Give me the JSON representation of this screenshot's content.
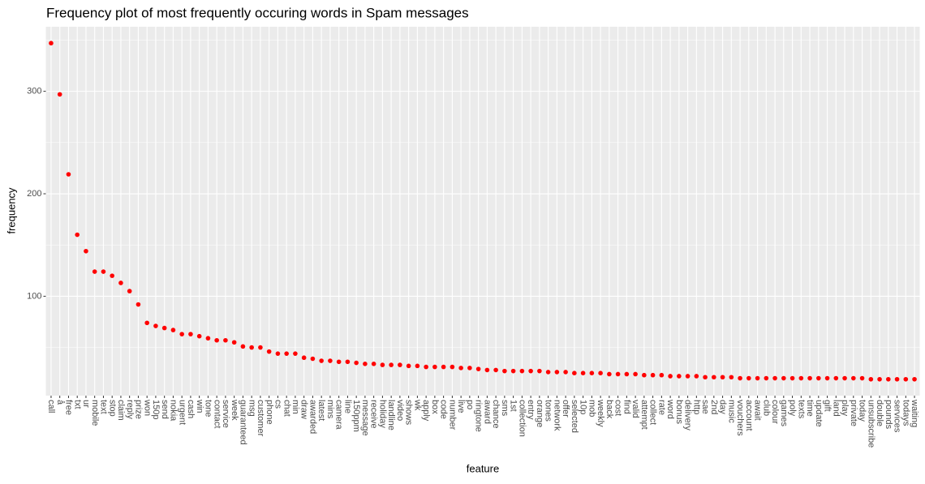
{
  "chart_data": {
    "type": "scatter",
    "title": "Frequency plot of most frequently occuring words in Spam messages",
    "x_label": "feature",
    "y_label": "frequency",
    "categories": [
      "call",
      "å",
      "free",
      "txt",
      "ur",
      "mobile",
      "text",
      "stop",
      "claim",
      "reply",
      "prize",
      "won",
      "150p",
      "send",
      "nokia",
      "urgent",
      "cash",
      "win",
      "tone",
      "contact",
      "service",
      "week",
      "guaranteed",
      "msg",
      "customer",
      "phone",
      "cs",
      "chat",
      "min",
      "draw",
      "awarded",
      "latest",
      "mins",
      "camera",
      "line",
      "150ppm",
      "message",
      "receive",
      "holiday",
      "landline",
      "video",
      "shows",
      "wk",
      "apply",
      "box",
      "code",
      "number",
      "live",
      "po",
      "ringtone",
      "award",
      "chance",
      "sms",
      "1st",
      "collection",
      "entry",
      "orange",
      "tones",
      "network",
      "offer",
      "selected",
      "10p",
      "mob",
      "weekly",
      "back",
      "cost",
      "find",
      "valid",
      "attempt",
      "collect",
      "rate",
      "word",
      "bonus",
      "delivery",
      "http",
      "sae",
      "2nd",
      "day",
      "music",
      "vouchers",
      "account",
      "await",
      "club",
      "colour",
      "games",
      "poly",
      "texts",
      "time",
      "update",
      "gift",
      "land",
      "play",
      "private",
      "today",
      "unsubscribe",
      "double",
      "pounds",
      "services",
      "todays",
      "waiting"
    ],
    "values": [
      347,
      297,
      219,
      160,
      144,
      124,
      124,
      120,
      113,
      105,
      92,
      74,
      71,
      69,
      67,
      63,
      63,
      61,
      59,
      57,
      57,
      55,
      51,
      50,
      50,
      46,
      44,
      44,
      44,
      40,
      39,
      37,
      37,
      36,
      36,
      35,
      34,
      34,
      33,
      33,
      33,
      32,
      32,
      31,
      31,
      31,
      31,
      30,
      30,
      29,
      28,
      28,
      27,
      27,
      27,
      27,
      27,
      26,
      26,
      26,
      25,
      25,
      25,
      25,
      24,
      24,
      24,
      24,
      23,
      23,
      23,
      22,
      22,
      22,
      22,
      21,
      21,
      21,
      21,
      20,
      20,
      20,
      20,
      20,
      20,
      20,
      20,
      20,
      20,
      20,
      20,
      20,
      20,
      20,
      19,
      19,
      19,
      19,
      19,
      19
    ],
    "color": "#ff0000",
    "ylim": [
      3,
      363
    ],
    "yticks": [
      100,
      200,
      300
    ],
    "y_minor_ticks": [
      50,
      150,
      250,
      350
    ],
    "grid": true,
    "panel_color": "#ebebeb"
  }
}
